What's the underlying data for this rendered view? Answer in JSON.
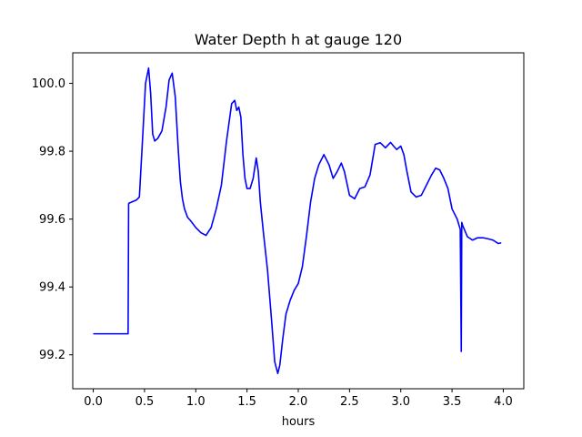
{
  "chart_data": {
    "type": "line",
    "title": "Water Depth h at gauge 120",
    "xlabel": "hours",
    "ylabel": "",
    "xlim": [
      -0.2,
      4.2
    ],
    "ylim": [
      99.1,
      100.09
    ],
    "grid": false,
    "line_color": "#0000ff",
    "x_ticks": [
      {
        "value": 0.0,
        "label": "0.0"
      },
      {
        "value": 0.5,
        "label": "0.5"
      },
      {
        "value": 1.0,
        "label": "1.0"
      },
      {
        "value": 1.5,
        "label": "1.5"
      },
      {
        "value": 2.0,
        "label": "2.0"
      },
      {
        "value": 2.5,
        "label": "2.5"
      },
      {
        "value": 3.0,
        "label": "3.0"
      },
      {
        "value": 3.5,
        "label": "3.5"
      },
      {
        "value": 4.0,
        "label": "4.0"
      }
    ],
    "y_ticks": [
      {
        "value": 99.2,
        "label": "99.2"
      },
      {
        "value": 99.4,
        "label": "99.4"
      },
      {
        "value": 99.6,
        "label": "99.6"
      },
      {
        "value": 99.8,
        "label": "99.8"
      },
      {
        "value": 100.0,
        "label": "100.0"
      }
    ],
    "series": [
      {
        "x": [
          0.0,
          0.2,
          0.34,
          0.345,
          0.35,
          0.42,
          0.45,
          0.48,
          0.51,
          0.54,
          0.56,
          0.58,
          0.6,
          0.63,
          0.67,
          0.71,
          0.74,
          0.77,
          0.8,
          0.83,
          0.85,
          0.87,
          0.89,
          0.92,
          0.95,
          1.0,
          1.05,
          1.1,
          1.15,
          1.2,
          1.25,
          1.3,
          1.35,
          1.38,
          1.4,
          1.42,
          1.44,
          1.46,
          1.48,
          1.5,
          1.53,
          1.56,
          1.59,
          1.61,
          1.63,
          1.66,
          1.7,
          1.74,
          1.77,
          1.8,
          1.82,
          1.85,
          1.88,
          1.92,
          1.96,
          2.0,
          2.04,
          2.08,
          2.12,
          2.16,
          2.2,
          2.25,
          2.3,
          2.34,
          2.38,
          2.42,
          2.45,
          2.5,
          2.55,
          2.6,
          2.65,
          2.7,
          2.75,
          2.8,
          2.85,
          2.9,
          2.93,
          2.96,
          3.0,
          3.03,
          3.06,
          3.1,
          3.15,
          3.2,
          3.25,
          3.3,
          3.34,
          3.38,
          3.42,
          3.46,
          3.5,
          3.55,
          3.58,
          3.59,
          3.595,
          3.6,
          3.605,
          3.65,
          3.7,
          3.75,
          3.8,
          3.85,
          3.9,
          3.95,
          3.98
        ],
        "y": [
          99.262,
          99.262,
          99.262,
          99.645,
          99.647,
          99.656,
          99.665,
          99.83,
          100.0,
          100.045,
          99.97,
          99.85,
          99.83,
          99.838,
          99.86,
          99.93,
          100.01,
          100.03,
          99.96,
          99.8,
          99.71,
          99.66,
          99.63,
          99.605,
          99.595,
          99.575,
          99.56,
          99.552,
          99.575,
          99.63,
          99.7,
          99.83,
          99.94,
          99.95,
          99.92,
          99.93,
          99.9,
          99.79,
          99.72,
          99.69,
          99.69,
          99.72,
          99.78,
          99.74,
          99.65,
          99.56,
          99.45,
          99.3,
          99.18,
          99.145,
          99.17,
          99.25,
          99.32,
          99.36,
          99.39,
          99.41,
          99.46,
          99.55,
          99.65,
          99.72,
          99.76,
          99.79,
          99.76,
          99.72,
          99.74,
          99.765,
          99.74,
          99.67,
          99.66,
          99.69,
          99.695,
          99.73,
          99.82,
          99.825,
          99.81,
          99.826,
          99.815,
          99.805,
          99.815,
          99.79,
          99.74,
          99.68,
          99.665,
          99.67,
          99.7,
          99.73,
          99.75,
          99.745,
          99.72,
          99.69,
          99.63,
          99.6,
          99.57,
          99.21,
          99.59,
          99.585,
          99.58,
          99.548,
          99.538,
          99.545,
          99.545,
          99.542,
          99.538,
          99.528,
          99.53
        ]
      }
    ]
  }
}
